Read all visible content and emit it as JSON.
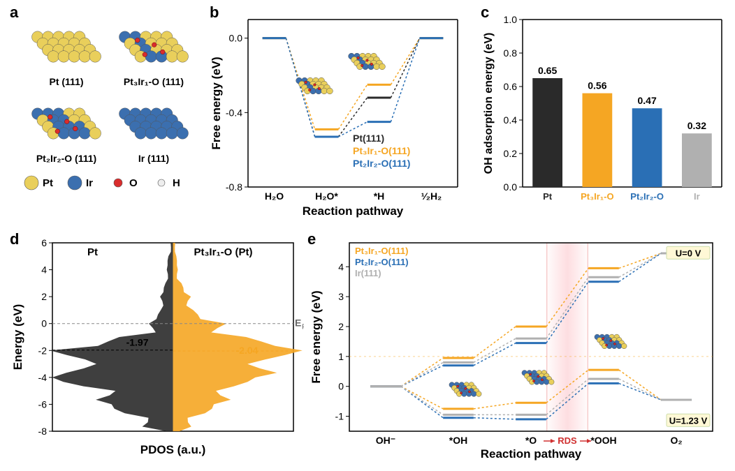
{
  "labels": {
    "a": "a",
    "b": "b",
    "c": "c",
    "d": "d",
    "e": "e"
  },
  "colors": {
    "pt_series": "#2a2a2a",
    "pt3ir1": "#f5a623",
    "pt2ir2": "#2a6fb5",
    "ir": "#b0b0b0",
    "atom_pt": "#e9cf5b",
    "atom_ir": "#3b6faf",
    "atom_o": "#d92d2d",
    "atom_h": "#eeeeee",
    "grid": "#e0e0e0",
    "axis": "#000000",
    "rds_band": "#fddadd",
    "rds_edge": "#e96a6a",
    "fermi_line": "#888888",
    "highlight_box": "#fff8d6"
  },
  "panel_a": {
    "models": [
      {
        "name": "Pt (111)",
        "pt": 1.0,
        "ir": 0.0
      },
      {
        "name": "Pt₃Ir₁-O (111)",
        "pt": 0.75,
        "ir": 0.25
      },
      {
        "name": "Pt₂Ir₂-O (111)",
        "pt": 0.5,
        "ir": 0.5
      },
      {
        "name": "Ir (111)",
        "pt": 0.0,
        "ir": 1.0
      }
    ],
    "legend": [
      {
        "label": "Pt",
        "color": "#e9cf5b"
      },
      {
        "label": "Ir",
        "color": "#3b6faf"
      },
      {
        "label": "O",
        "color": "#d92d2d"
      },
      {
        "label": "H",
        "color": "#eeeeee"
      }
    ]
  },
  "panel_b": {
    "type": "step-line",
    "xlabel": "Reaction pathway",
    "ylabel": "Free energy (eV)",
    "ylim": [
      -0.8,
      0.1
    ],
    "yticks": [
      0.0,
      -0.4,
      -0.8
    ],
    "stages": [
      "H₂O",
      "H₂O*",
      "*H",
      "¹⁄₂H₂"
    ],
    "series": [
      {
        "name": "Pt(111)",
        "color": "#2a2a2a",
        "y": [
          0.0,
          -0.53,
          -0.32,
          0.0
        ]
      },
      {
        "name": "Pt₃Ir₁-O(111)",
        "color": "#f5a623",
        "y": [
          0.0,
          -0.49,
          -0.25,
          0.0
        ]
      },
      {
        "name": "Pt₂Ir₂-O(111)",
        "color": "#2a6fb5",
        "y": [
          0.0,
          -0.53,
          -0.45,
          0.0
        ]
      }
    ]
  },
  "panel_c": {
    "type": "bar",
    "ylabel": "OH adsorption energy (eV)",
    "ylim": [
      0,
      1.0
    ],
    "yticks": [
      0.0,
      0.2,
      0.4,
      0.6,
      0.8,
      1.0
    ],
    "bars": [
      {
        "label": "Pt",
        "value": 0.65,
        "color": "#2a2a2a"
      },
      {
        "label": "Pt₃Ir₁-O",
        "value": 0.56,
        "color": "#f5a623"
      },
      {
        "label": "Pt₂Ir₂-O",
        "value": 0.47,
        "color": "#2a6fb5"
      },
      {
        "label": "Ir",
        "value": 0.32,
        "color": "#b0b0b0"
      }
    ],
    "bar_width": 0.6
  },
  "panel_d": {
    "type": "pdos-mirror",
    "xlabel": "PDOS (a.u.)",
    "ylabel": "Energy (eV)",
    "ylim": [
      -8,
      6
    ],
    "yticks": [
      -8,
      -6,
      -4,
      -2,
      0,
      2,
      4,
      6
    ],
    "left": {
      "name": "Pt",
      "color": "#2a2a2a",
      "dband": -1.97
    },
    "right": {
      "name": "Pt₃Ir₁-O (Pt)",
      "color": "#f5a623",
      "dband": -2.04
    },
    "fermi_label": "E_F",
    "points": [
      {
        "e": 6,
        "l": 0.02,
        "r": 0.02
      },
      {
        "e": 5,
        "l": 0.04,
        "r": 0.03
      },
      {
        "e": 4,
        "l": 0.05,
        "r": 0.04
      },
      {
        "e": 3,
        "l": 0.07,
        "r": 0.08
      },
      {
        "e": 2,
        "l": 0.1,
        "r": 0.14
      },
      {
        "e": 1,
        "l": 0.12,
        "r": 0.2
      },
      {
        "e": 0,
        "l": 0.18,
        "r": 0.4
      },
      {
        "e": -1,
        "l": 0.55,
        "r": 0.75
      },
      {
        "e": -2,
        "l": 0.9,
        "r": 0.95
      },
      {
        "e": -3,
        "l": 0.8,
        "r": 0.78
      },
      {
        "e": -4,
        "l": 0.88,
        "r": 0.6
      },
      {
        "e": -5,
        "l": 0.6,
        "r": 0.45
      },
      {
        "e": -6,
        "l": 0.45,
        "r": 0.3
      },
      {
        "e": -7,
        "l": 0.25,
        "r": 0.15
      },
      {
        "e": -8,
        "l": 0.05,
        "r": 0.05
      }
    ]
  },
  "panel_e": {
    "type": "step-line",
    "xlabel": "Reaction pathway",
    "ylabel": "Free energy (eV)",
    "ylim": [
      -1.5,
      4.8
    ],
    "yticks": [
      -1,
      0,
      1,
      2,
      3,
      4
    ],
    "stages": [
      "OH⁻",
      "*OH",
      "*O",
      "*OOH",
      "O₂"
    ],
    "rds_between": [
      2,
      3
    ],
    "rds_label": "RDS",
    "voltage_labels": [
      {
        "text": "U=0 V",
        "y": 4.35
      },
      {
        "text": "U=1.23 V",
        "y": -1.25
      }
    ],
    "series": [
      {
        "name": "Pt₃Ir₁-O(111)",
        "color": "#f5a623",
        "y0": [
          0.0,
          0.95,
          2.0,
          3.95,
          4.45
        ],
        "y1": [
          0.0,
          -0.75,
          -0.55,
          0.55,
          -0.45
        ]
      },
      {
        "name": "Pt₂Ir₂-O(111)",
        "color": "#2a6fb5",
        "y0": [
          0.0,
          0.7,
          1.45,
          3.5,
          4.45
        ],
        "y1": [
          0.0,
          -1.05,
          -1.1,
          0.1,
          -0.45
        ]
      },
      {
        "name": "Ir(111)",
        "color": "#b0b0b0",
        "y0": [
          0.0,
          0.8,
          1.6,
          3.65,
          4.45
        ],
        "y1": [
          0.0,
          -0.95,
          -0.95,
          0.25,
          -0.45
        ]
      }
    ]
  }
}
